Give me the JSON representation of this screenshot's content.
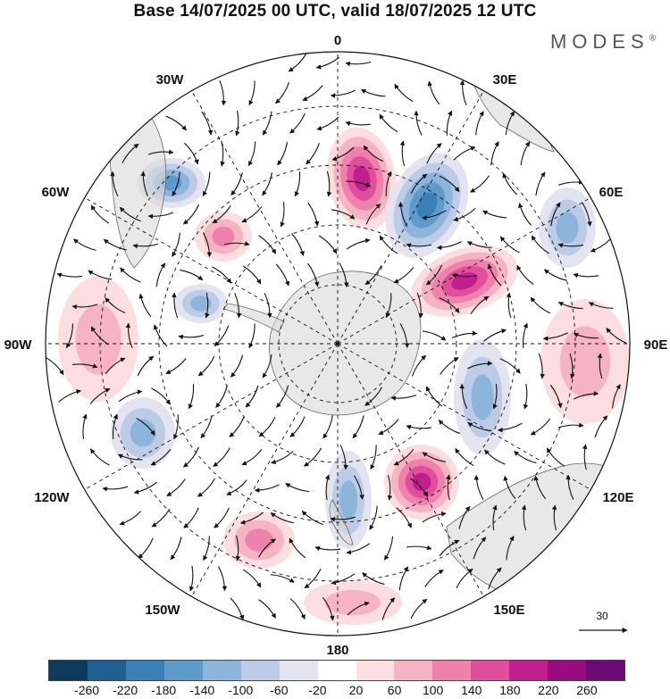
{
  "title": "Base 14/07/2025 00 UTC, valid 18/07/2025 12 UTC",
  "brand": {
    "name": "MODES",
    "mark": "®"
  },
  "longitude_labels": {
    "lon_0": "0",
    "lon_30e": "30E",
    "lon_60e": "60E",
    "lon_90e": "90E",
    "lon_120e": "120E",
    "lon_150e": "150E",
    "lon_180": "180",
    "lon_150w": "150W",
    "lon_120w": "120W",
    "lon_90w": "90W",
    "lon_60w": "60W",
    "lon_30w": "30W"
  },
  "vector_scale": {
    "label": "30"
  },
  "colorbar": {
    "colors": [
      "#0c3a5b",
      "#1e5f8f",
      "#3b80b5",
      "#5f9bca",
      "#8db4da",
      "#bccbe6",
      "#e4e4f1",
      "#ffffff",
      "#fbdde2",
      "#f6b3c4",
      "#ef82ac",
      "#e14f9c",
      "#c21f8e",
      "#9a0b7f",
      "#6d0a74"
    ],
    "ticks": [
      "-260",
      "-220",
      "-180",
      "-140",
      "-100",
      "-60",
      "-20",
      "20",
      "60",
      "100",
      "140",
      "180",
      "220",
      "260"
    ]
  },
  "anomaly_centers": [
    {
      "name": "pos-0-north",
      "sign": "+",
      "level": 4
    },
    {
      "name": "neg-20e",
      "sign": "-",
      "level": 4
    },
    {
      "name": "pos-45e",
      "sign": "+",
      "level": 4
    },
    {
      "name": "neg-60w",
      "sign": "-",
      "level": 3
    },
    {
      "name": "pos-135e",
      "sign": "+",
      "level": 4
    },
    {
      "name": "neg-70e",
      "sign": "-",
      "level": 2
    },
    {
      "name": "pos-90e",
      "sign": "+",
      "level": 1
    },
    {
      "name": "neg-100e",
      "sign": "-",
      "level": 2
    },
    {
      "name": "pos-90w",
      "sign": "+",
      "level": 1
    },
    {
      "name": "neg-110w",
      "sign": "-",
      "level": 2
    },
    {
      "name": "pos-150w",
      "sign": "+",
      "level": 2
    },
    {
      "name": "neg-170e",
      "sign": "-",
      "level": 2
    },
    {
      "name": "pos-180",
      "sign": "+",
      "level": 1
    },
    {
      "name": "pos-40w",
      "sign": "+",
      "level": 2
    },
    {
      "name": "neg-80w",
      "sign": "-",
      "level": 2
    }
  ]
}
